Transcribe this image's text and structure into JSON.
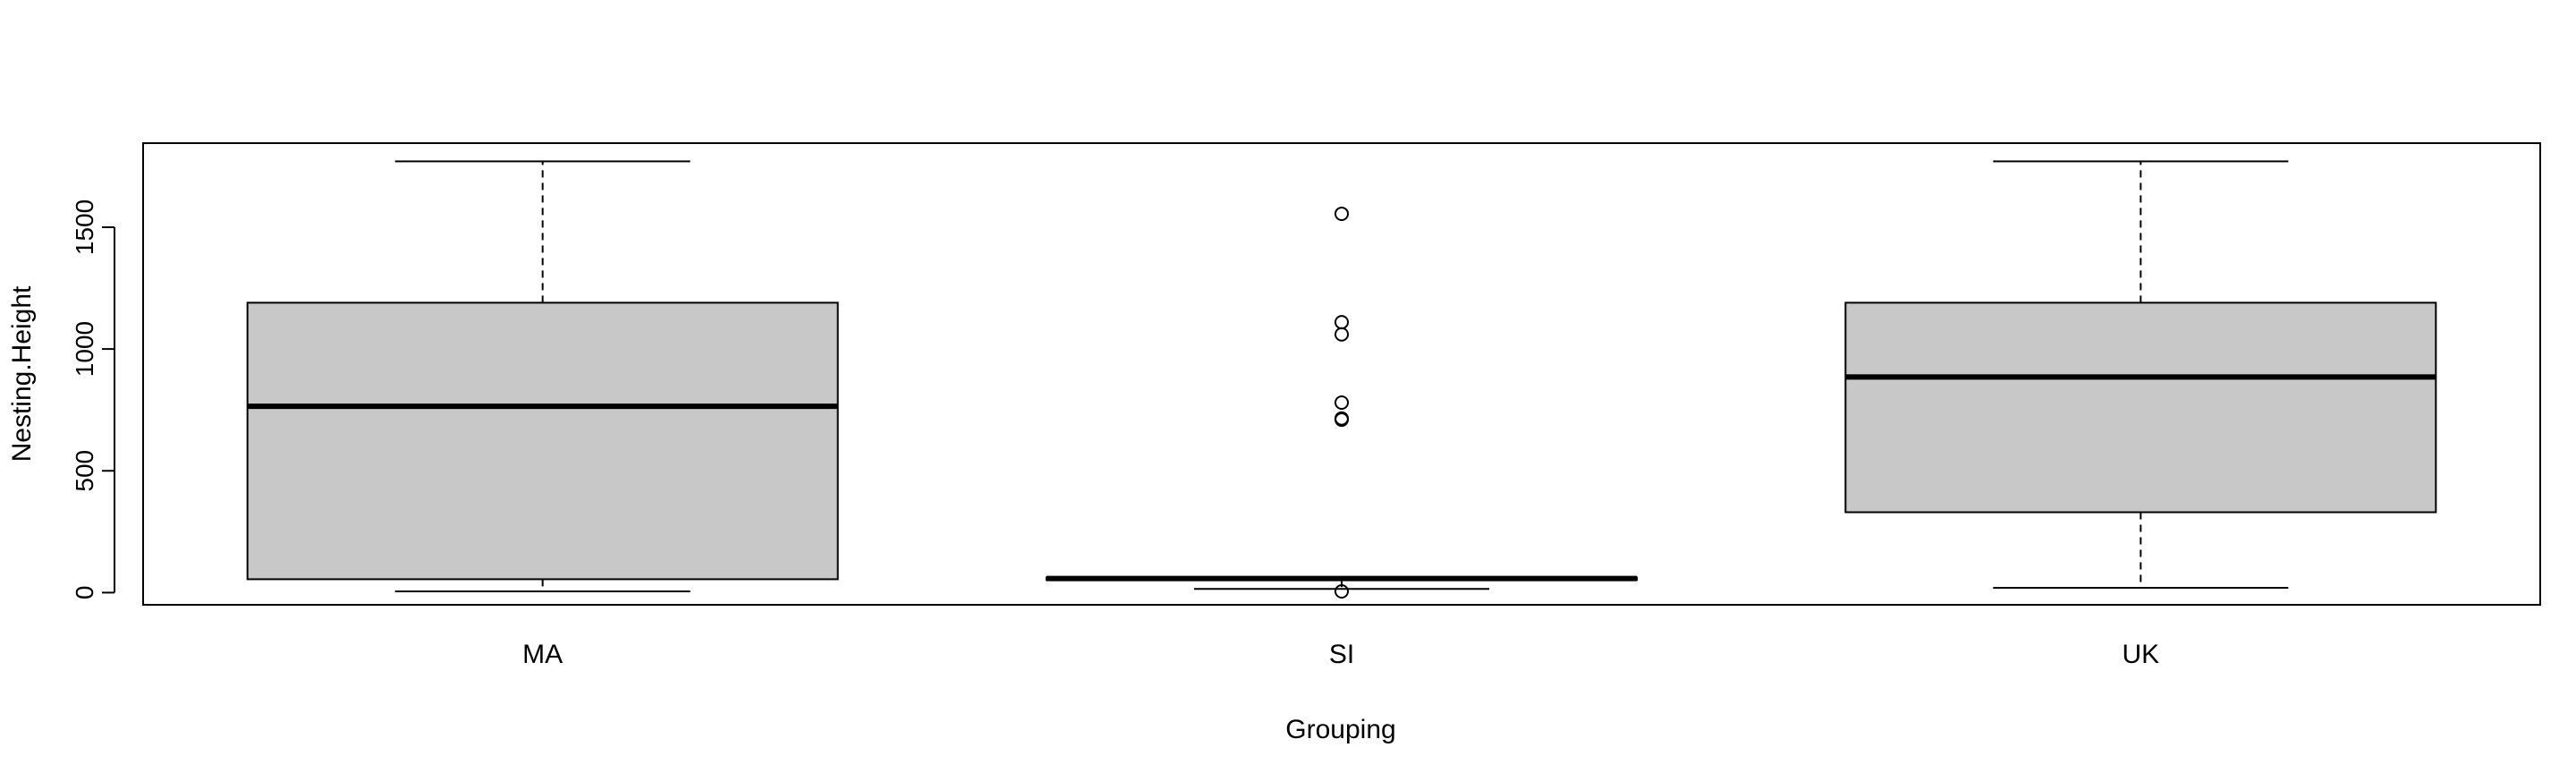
{
  "chart_data": {
    "type": "boxplot",
    "title": "",
    "xlabel": "Grouping",
    "ylabel": "Nesting.Height",
    "ylim": [
      -50,
      1845
    ],
    "yticks": [
      0,
      500,
      1000,
      1500
    ],
    "grid": false,
    "legend": "none",
    "colors": {
      "box_fill": "#c8c8c8",
      "stroke": "#000000",
      "background": "#ffffff"
    },
    "categories": [
      "MA",
      "SI",
      "UK"
    ],
    "boxes": [
      {
        "name": "MA",
        "whisker_low": 5,
        "q1": 55,
        "median": 765,
        "q3": 1190,
        "whisker_high": 1770,
        "outliers": []
      },
      {
        "name": "SI",
        "whisker_low": 15,
        "q1": 52,
        "median": 58,
        "q3": 62,
        "whisker_high": 62,
        "outliers": [
          5,
          710,
          715,
          780,
          1060,
          1110,
          1555
        ]
      },
      {
        "name": "UK",
        "whisker_low": 20,
        "q1": 330,
        "median": 885,
        "q3": 1190,
        "whisker_high": 1770,
        "outliers": []
      }
    ]
  }
}
